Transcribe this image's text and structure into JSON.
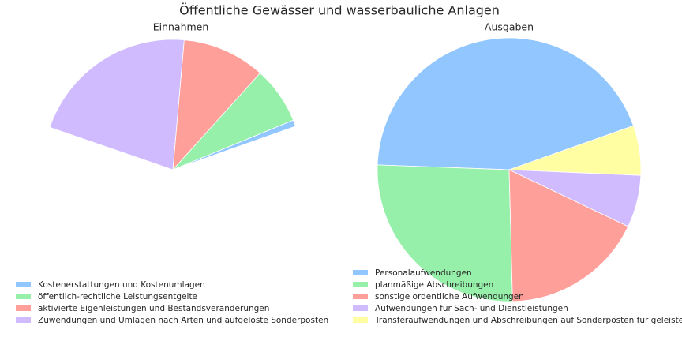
{
  "title": "Öffentliche Gewässer und wasserbauliche Anlagen",
  "chart_data": [
    {
      "type": "pie",
      "title": "Einnahmen",
      "startangle": 19.5,
      "categories": [
        "Kostenerstattungen und Kostenumlagen",
        "öffentlich-rechtliche Leistungsentgelte",
        "aktivierte Eigenleistungen und Bestandsveränderungen",
        "Zuwendungen und Umlagen nach Arten und aufgelöste Sonderposten"
      ],
      "values": [
        0.008,
        0.071,
        0.103,
        0.211
      ],
      "colors": [
        "#92c6ff",
        "#97f0aa",
        "#ff9f9a",
        "#d0bbff"
      ]
    },
    {
      "type": "pie",
      "title": "Ausgaben",
      "startangle": 19.5,
      "categories": [
        "Personalaufwendungen",
        "planmäßige Abschreibungen",
        "sonstige ordentliche Aufwendungen",
        "Aufwendungen für Sach- und Dienstleistungen",
        "Transferaufwendungen und Abschreibungen auf Sonderposten für geleiste"
      ],
      "values": [
        44,
        26,
        17.5,
        6.4,
        6.1
      ],
      "colors": [
        "#92c6ff",
        "#97f0aa",
        "#ff9f9a",
        "#d0bbff",
        "#fffea3"
      ]
    }
  ]
}
